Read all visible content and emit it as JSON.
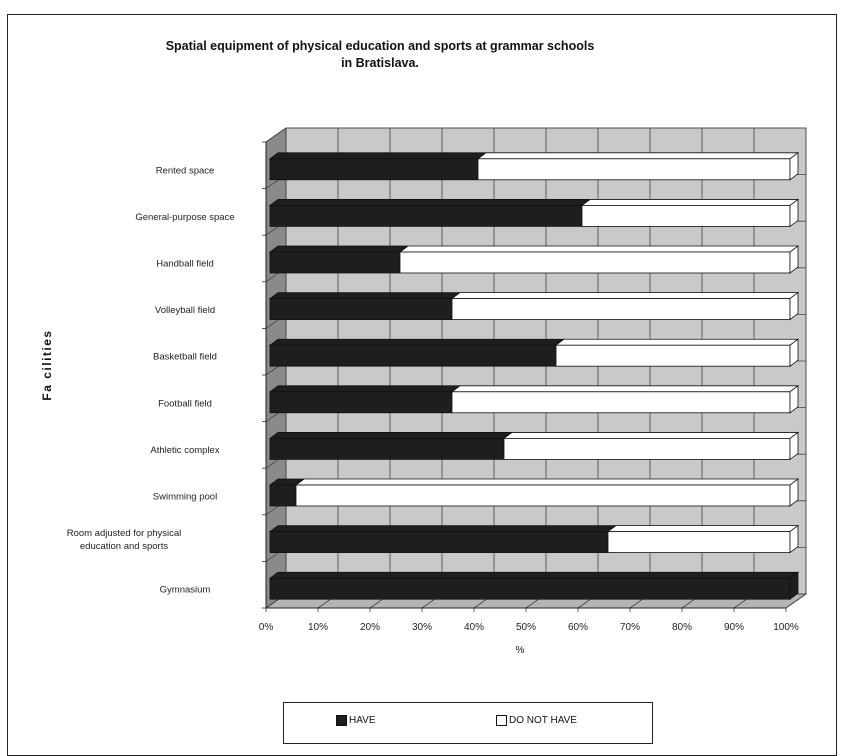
{
  "colors": {
    "have": "#1e1e1e",
    "do_not_have": "#ffffff",
    "plot_bg": "#c9c9c9",
    "wall_side": "#8a8a8a",
    "floor": "#b5b5b5"
  },
  "chart_data": {
    "type": "bar",
    "orientation": "horizontal",
    "stacked": "percent",
    "title": [
      "Spatial equipment of physical education and sports at grammar schools",
      "in Bratislava."
    ],
    "xlabel": "%",
    "ylabel": "Fa cilities",
    "xlim": [
      0,
      100
    ],
    "x_ticks": [
      "0%",
      "10%",
      "20%",
      "30%",
      "40%",
      "50%",
      "60%",
      "70%",
      "80%",
      "90%",
      "100%"
    ],
    "grid": true,
    "legend_position": "bottom",
    "categories": [
      [
        "Rented space"
      ],
      [
        "General-purpose space"
      ],
      [
        "Handball field"
      ],
      [
        "Volleyball field"
      ],
      [
        "Basketball field"
      ],
      [
        "Football field"
      ],
      [
        "Athletic complex"
      ],
      [
        "Swimming pool"
      ],
      [
        "Room adjusted for physical",
        "education and sports"
      ],
      [
        "Gymnasium"
      ]
    ],
    "series": [
      {
        "name": "HAVE",
        "values": [
          40,
          60,
          25,
          35,
          55,
          35,
          45,
          5,
          65,
          100
        ]
      },
      {
        "name": "DO NOT HAVE",
        "values": [
          60,
          40,
          75,
          65,
          45,
          65,
          55,
          95,
          35,
          0
        ]
      }
    ]
  }
}
